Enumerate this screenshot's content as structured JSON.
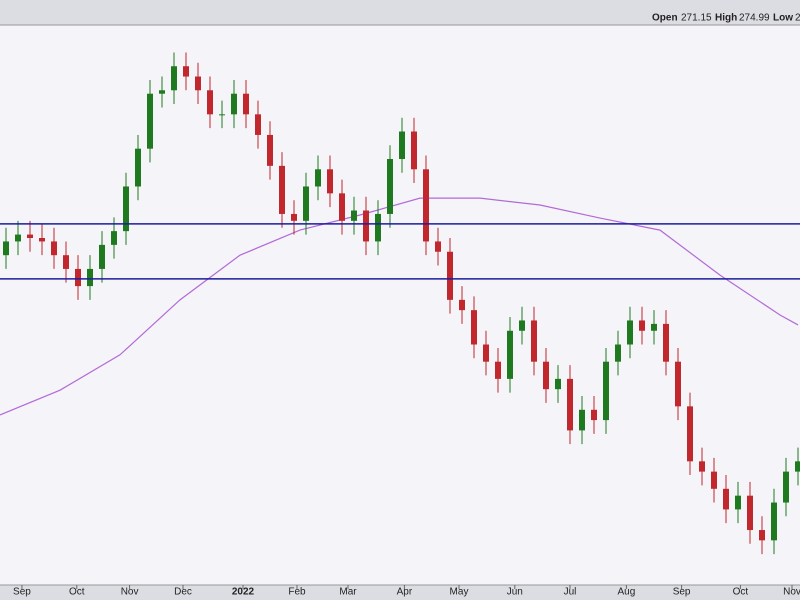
{
  "chart_data": {
    "type": "candlestick",
    "header": {
      "open_label": "Open",
      "open": 271.15,
      "high_label": "High",
      "high": 274.99,
      "low_label": "Low",
      "low": "2"
    },
    "open": [
      348,
      352,
      354,
      353,
      352,
      348,
      344,
      339,
      344,
      351,
      355,
      368,
      379,
      395,
      396,
      403,
      400,
      396,
      389,
      389,
      395,
      389,
      383,
      374,
      360,
      358,
      368,
      373,
      366,
      358,
      361,
      352,
      360,
      376,
      384,
      373,
      352,
      349,
      335,
      332,
      322,
      317,
      312,
      326,
      329,
      317,
      309,
      312,
      297,
      303,
      300,
      317,
      322,
      329,
      326,
      328,
      317,
      304,
      288,
      285,
      280,
      274,
      278,
      268,
      265,
      276,
      285
    ],
    "high": [
      356,
      358,
      358,
      357,
      356,
      352,
      348,
      348,
      355,
      359,
      372,
      383,
      399,
      400,
      407,
      407,
      404,
      400,
      393,
      399,
      399,
      393,
      387,
      378,
      364,
      372,
      377,
      377,
      370,
      365,
      365,
      364,
      380,
      388,
      388,
      377,
      356,
      353,
      339,
      336,
      326,
      321,
      330,
      333,
      333,
      321,
      316,
      316,
      307,
      307,
      321,
      326,
      333,
      333,
      332,
      332,
      321,
      308,
      292,
      289,
      284,
      282,
      282,
      272,
      280,
      289,
      292
    ],
    "low": [
      344,
      348,
      349,
      348,
      344,
      340,
      335,
      335,
      340,
      347,
      351,
      364,
      375,
      391,
      392,
      396,
      392,
      385,
      385,
      385,
      385,
      379,
      370,
      356,
      354,
      354,
      364,
      362,
      354,
      354,
      348,
      348,
      356,
      372,
      369,
      348,
      345,
      331,
      328,
      318,
      313,
      308,
      308,
      322,
      313,
      305,
      305,
      293,
      293,
      296,
      296,
      313,
      318,
      322,
      322,
      313,
      300,
      284,
      281,
      276,
      270,
      270,
      264,
      261,
      261,
      272,
      281
    ],
    "close": [
      352,
      354,
      353,
      352,
      348,
      344,
      339,
      344,
      351,
      355,
      368,
      379,
      395,
      396,
      403,
      400,
      396,
      389,
      389,
      395,
      389,
      383,
      374,
      360,
      358,
      368,
      373,
      366,
      358,
      361,
      352,
      360,
      376,
      384,
      373,
      352,
      349,
      335,
      332,
      322,
      317,
      312,
      326,
      329,
      317,
      309,
      312,
      297,
      303,
      300,
      317,
      322,
      329,
      326,
      328,
      317,
      304,
      288,
      285,
      280,
      274,
      278,
      268,
      265,
      276,
      285,
      288
    ],
    "up_color": "#1f7a1f",
    "down_color": "#c0282d",
    "ma": {
      "x": [
        -0.5,
        4.5,
        9.5,
        14.5,
        19.5,
        24.5,
        29.5,
        34.5,
        39.5,
        44.5,
        49.5,
        54.5,
        59.5,
        64.5,
        66
      ],
      "values": [
        301.5,
        308.7,
        319,
        335,
        348,
        355.3,
        359.7,
        364.6,
        364.6,
        362.6,
        358.8,
        355.3,
        342.2,
        330.6,
        327.7
      ],
      "color": "#b36ad6"
    },
    "hlines": [
      357.1,
      341.1
    ],
    "hline_color": "#1c1c9e",
    "ylim": [
      252,
      415
    ],
    "xticks": [
      {
        "value": 1.33,
        "label": "Sep"
      },
      {
        "value": 5.9,
        "label": "Oct"
      },
      {
        "value": 10.3,
        "label": "Nov"
      },
      {
        "value": 14.75,
        "label": "Dec"
      },
      {
        "value": 19.75,
        "label": "2022"
      },
      {
        "value": 24.25,
        "label": "Feb"
      },
      {
        "value": 28.5,
        "label": "Mar"
      },
      {
        "value": 33.2,
        "label": "Apr"
      },
      {
        "value": 37.75,
        "label": "May"
      },
      {
        "value": 42.4,
        "label": "Jun"
      },
      {
        "value": 47,
        "label": "Jul"
      },
      {
        "value": 51.7,
        "label": "Aug"
      },
      {
        "value": 56.3,
        "label": "Sep"
      },
      {
        "value": 61.2,
        "label": "Oct"
      },
      {
        "value": 65.5,
        "label": "Nov"
      }
    ]
  }
}
